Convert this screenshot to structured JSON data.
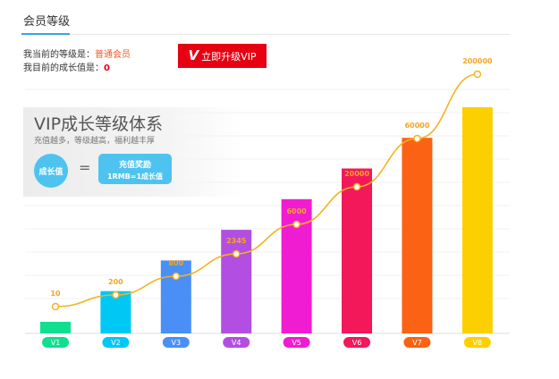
{
  "header": {
    "title": "会员等级"
  },
  "info": {
    "level_label": "我当前的等级是：",
    "level_value": "普通会员",
    "growth_label": "我目前的成长值是：",
    "growth_value": "0"
  },
  "upgrade_button": {
    "icon": "V",
    "label": "立即升级VIP"
  },
  "panel": {
    "title": "VIP成长等级体系",
    "subtitle": "充值越多，等级越高，福利越丰厚",
    "growth_circle": "成长值",
    "equals": "=",
    "reward_line1": "充值奖励",
    "reward_line2": "1RMB=1成长值"
  },
  "chart_data": {
    "type": "bar",
    "categories": [
      "V1",
      "V2",
      "V3",
      "V4",
      "V5",
      "V6",
      "V7",
      "V8"
    ],
    "values": [
      10,
      200,
      800,
      2345,
      6000,
      20000,
      60000,
      200000
    ],
    "data_labels": [
      "10",
      "200",
      "800",
      "2345",
      "6000",
      "20000",
      "60000",
      "200000"
    ],
    "colors": [
      "#11df8f",
      "#00c8f5",
      "#4a8ff5",
      "#b24fe2",
      "#f01cd1",
      "#f2185a",
      "#fb6214",
      "#fcd000"
    ],
    "line_color": "#f5b21d",
    "grid": true
  }
}
